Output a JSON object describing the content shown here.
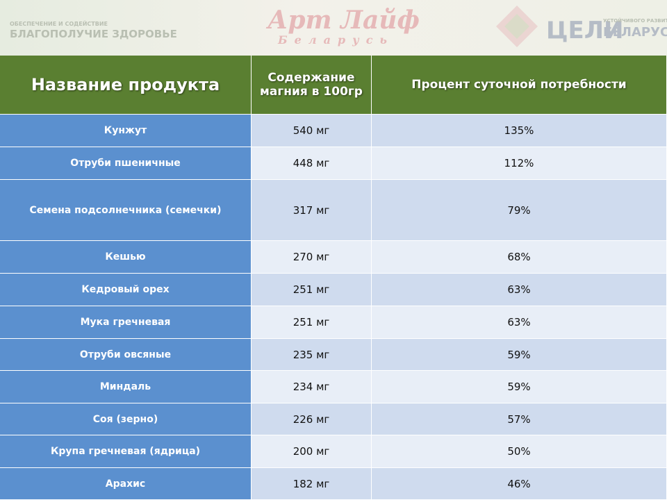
{
  "banner": {
    "left_logo": [
      "ОБЕСПЕЧЕНИЕ И СОДЕЙСТВИЕ",
      "БЛАГОПОЛУЧИЕ ЗДОРОВЬЕ"
    ],
    "center_logo": [
      "Арт Лайф",
      "Беларусь"
    ],
    "right_logo": [
      "ЦЕЛИ",
      "УСТОЙЧИВОГО РАЗВИТИЯ В",
      "БЕЛАРУСИ"
    ]
  },
  "table": {
    "headers": [
      "Название продукта",
      "Содержание магния в 100гр",
      "Процент суточной потребности"
    ],
    "rows": [
      [
        "Кунжут",
        "540 мг",
        "135%"
      ],
      [
        "Отруби пшеничные",
        "448 мг",
        "112%"
      ],
      [
        "Семена подсолнечника (семечки)",
        "317 мг",
        "79%"
      ],
      [
        "Кешью",
        "270 мг",
        "68%"
      ],
      [
        "Кедровый орех",
        "251 мг",
        "63%"
      ],
      [
        "Мука гречневая",
        "251 мг",
        "63%"
      ],
      [
        "Отруби овсяные",
        "235 мг",
        "59%"
      ],
      [
        "Миндаль",
        "234 мг",
        "59%"
      ],
      [
        "Соя (зерно)",
        "226 мг",
        "57%"
      ],
      [
        "Крупа гречневая (ядрица)",
        "200 мг",
        "50%"
      ],
      [
        "Арахис",
        "182 мг",
        "46%"
      ]
    ]
  }
}
